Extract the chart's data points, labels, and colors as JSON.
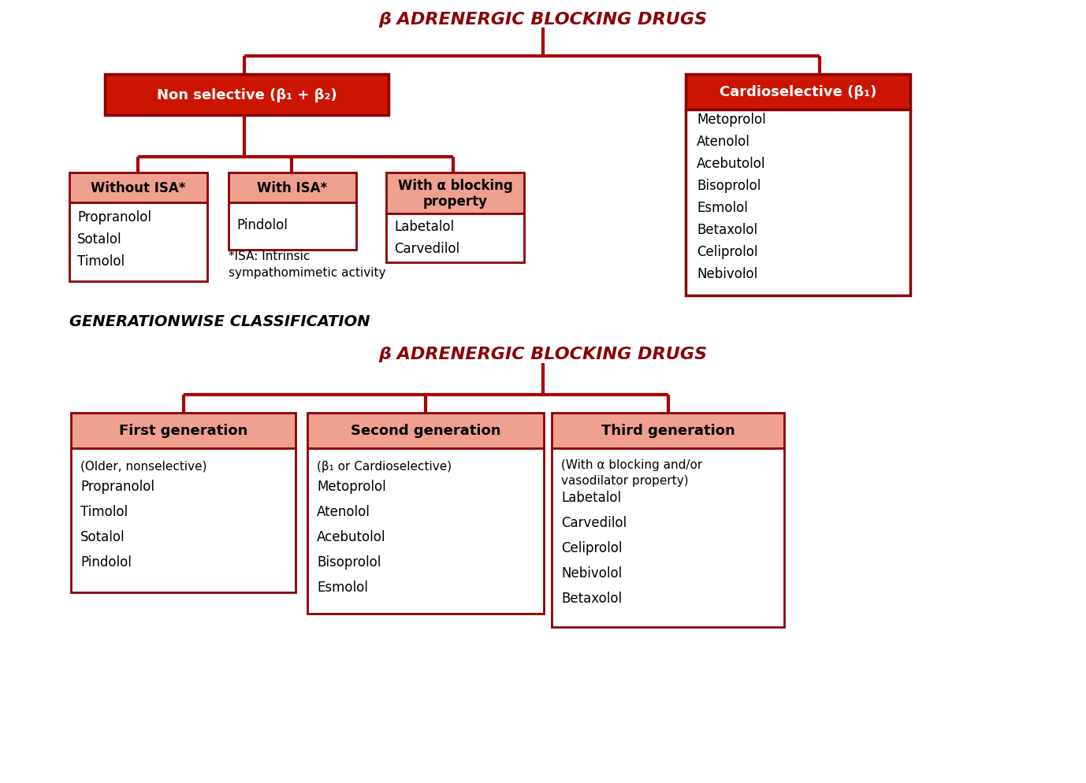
{
  "bg_color": "#ffffff",
  "dark_red": "#8B0000",
  "line_red": "#AA0000",
  "box_red": "#CC1500",
  "header_salmon": "#F0A090",
  "text_black": "#111111",
  "text_white": "#ffffff",
  "top_title": "β ADRENERGIC BLOCKING DRUGS",
  "part1": {
    "nonselective_label": "Non selective (β₁ + β₂)",
    "cardioselective_label": "Cardioselective (β₁)",
    "cardioselective_drugs": [
      "Metoprolol",
      "Atenolol",
      "Acebutolol",
      "Bisoprolol",
      "Esmolol",
      "Betaxolol",
      "Celiprolol",
      "Nebivolol"
    ],
    "sub1_label": "Without ISA*",
    "sub1_drugs": [
      "Propranolol",
      "Sotalol",
      "Timolol"
    ],
    "sub2_label": "With ISA*",
    "sub2_drug": "Pindolol",
    "sub2_note1": "*ISA: Intrinsic",
    "sub2_note2": "sympathomimetic activity",
    "sub3_label": "With α blocking\nproperty",
    "sub3_drugs": [
      "Labetalol",
      "Carvedilol"
    ],
    "section_label": "GENERATIONWISE CLASSIFICATION"
  },
  "part2": {
    "title": "β ADRENERGIC BLOCKING DRUGS",
    "gen1_label": "First generation",
    "gen1_desc": "(Older, nonselective)",
    "gen1_drugs": [
      "Propranolol",
      "Timolol",
      "Sotalol",
      "Pindolol"
    ],
    "gen2_label": "Second generation",
    "gen2_desc": "(β₁ or Cardioselective)",
    "gen2_drugs": [
      "Metoprolol",
      "Atenolol",
      "Acebutolol",
      "Bisoprolol",
      "Esmolol"
    ],
    "gen3_label": "Third generation",
    "gen3_desc_line1": "(With α blocking and/or",
    "gen3_desc_line2": "vasodilator property)",
    "gen3_drugs": [
      "Labetalol",
      "Carvedilol",
      "Celiprolol",
      "Nebivolol",
      "Betaxolol"
    ]
  }
}
